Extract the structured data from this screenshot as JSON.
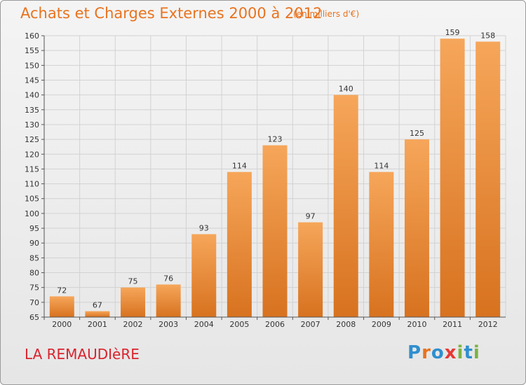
{
  "header": {
    "title": "Achats et Charges Externes 2000 à 2012",
    "subtitle": "(en milliers d'€)"
  },
  "footer": {
    "place": "LA REMAUDIèRE",
    "logo_text": "Proxiti"
  },
  "colors": {
    "title": "#e8731f",
    "place": "#d9232d",
    "bar_top": "#f6a65a",
    "bar_bottom": "#d7721f",
    "grid": "#d2d2d2",
    "logo": [
      "#2f8fcf",
      "#e8731f",
      "#2f8fcf",
      "#e53935",
      "#7cb342",
      "#2f8fcf",
      "#7cb342"
    ]
  },
  "chart_data": {
    "type": "bar",
    "title": "Achats et Charges Externes 2000 à 2012",
    "subtitle": "(en milliers d'€)",
    "categories": [
      "2000",
      "2001",
      "2002",
      "2003",
      "2004",
      "2005",
      "2006",
      "2007",
      "2008",
      "2009",
      "2010",
      "2011",
      "2012"
    ],
    "values": [
      72,
      67,
      75,
      76,
      93,
      114,
      123,
      97,
      140,
      114,
      125,
      159,
      158
    ],
    "ylim": [
      65,
      160
    ],
    "yticks": [
      65,
      70,
      75,
      80,
      85,
      90,
      95,
      100,
      105,
      110,
      115,
      120,
      125,
      130,
      135,
      140,
      145,
      150,
      155,
      160
    ],
    "grid": true,
    "data_labels": true
  }
}
